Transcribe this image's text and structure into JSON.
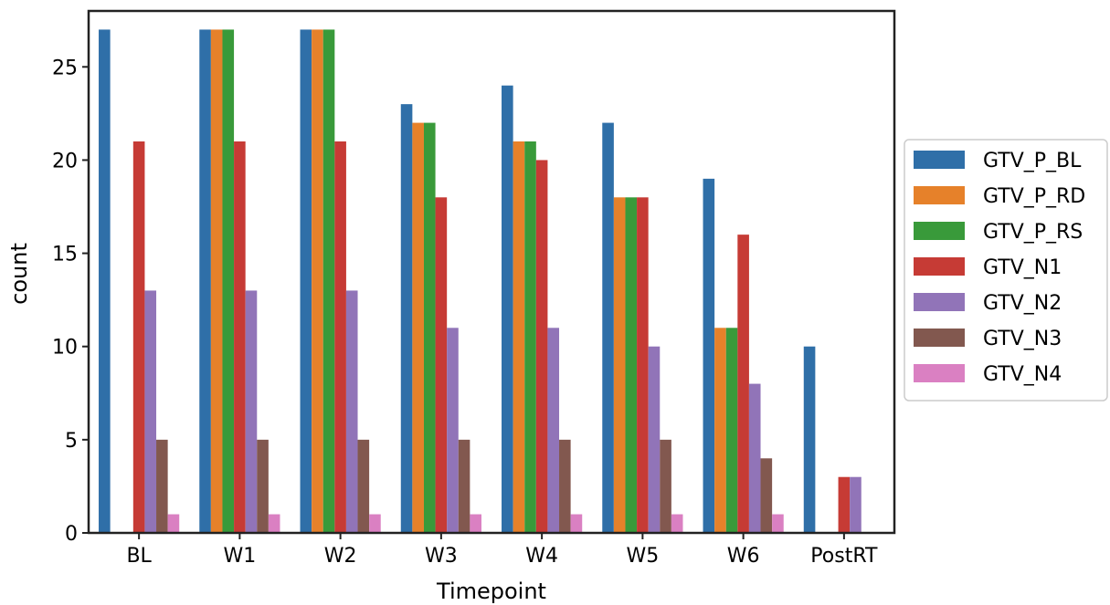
{
  "chart_data": {
    "type": "bar",
    "title": "",
    "xlabel": "Timepoint",
    "ylabel": "count",
    "ylim": [
      0,
      28
    ],
    "yticks": [
      0,
      5,
      10,
      15,
      20,
      25
    ],
    "categories": [
      "BL",
      "W1",
      "W2",
      "W3",
      "W4",
      "W5",
      "W6",
      "PostRT"
    ],
    "legend": {
      "placement": "right-outside"
    },
    "grid": false,
    "series": [
      {
        "name": "GTV_P_BL",
        "color": "#2f6fa8",
        "values": [
          27,
          27,
          27,
          23,
          24,
          22,
          19,
          10
        ]
      },
      {
        "name": "GTV_P_RD",
        "color": "#e6812a",
        "values": [
          0,
          27,
          27,
          22,
          21,
          18,
          11,
          0
        ]
      },
      {
        "name": "GTV_P_RS",
        "color": "#399a3a",
        "values": [
          0,
          27,
          27,
          22,
          21,
          18,
          11,
          0
        ]
      },
      {
        "name": "GTV_N1",
        "color": "#c63b35",
        "values": [
          21,
          21,
          21,
          18,
          20,
          18,
          16,
          3
        ]
      },
      {
        "name": "GTV_N2",
        "color": "#9174b8",
        "values": [
          13,
          13,
          13,
          11,
          11,
          10,
          8,
          3
        ]
      },
      {
        "name": "GTV_N3",
        "color": "#82584f",
        "values": [
          5,
          5,
          5,
          5,
          5,
          5,
          4,
          0
        ]
      },
      {
        "name": "GTV_N4",
        "color": "#da80c2",
        "values": [
          1,
          1,
          1,
          1,
          1,
          1,
          1,
          0
        ]
      }
    ]
  }
}
